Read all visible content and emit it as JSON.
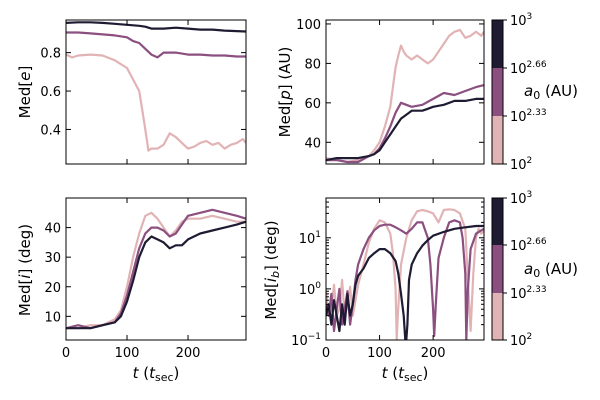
{
  "colors": {
    "high": "#1e1b33",
    "mid": "#8b4f80",
    "low": "#e2b3b5"
  },
  "colorbar": {
    "label_main": "a",
    "label_sub": "0",
    "label_unit": " (AU)",
    "ticks": [
      {
        "base": "10",
        "exp": "3"
      },
      {
        "base": "10",
        "exp": "2.66"
      },
      {
        "base": "10",
        "exp": "2.33"
      },
      {
        "base": "10",
        "exp": "2"
      }
    ]
  },
  "xaxis": {
    "label_t": "t",
    "label_open": " (",
    "label_t2": "t",
    "label_sub": "sec",
    "label_close": ")",
    "ticks": [
      "0",
      "100",
      "200"
    ]
  },
  "chart_data": [
    {
      "type": "line",
      "id": "e",
      "ylabel": {
        "pre": "Med[",
        "var": "e",
        "post": "]"
      },
      "xlim": [
        0,
        295
      ],
      "ylim": [
        0.22,
        0.97
      ],
      "yticks": [
        "0.4",
        "0.6",
        "0.8"
      ],
      "ytick_values": [
        0.4,
        0.6,
        0.8
      ],
      "series": [
        {
          "name": "a0 = 10^3",
          "color_key": "high",
          "x": [
            0,
            20,
            40,
            60,
            80,
            100,
            120,
            130,
            140,
            160,
            180,
            200,
            220,
            240,
            260,
            280,
            295
          ],
          "y": [
            0.955,
            0.958,
            0.958,
            0.955,
            0.95,
            0.945,
            0.94,
            0.935,
            0.925,
            0.925,
            0.93,
            0.925,
            0.92,
            0.92,
            0.915,
            0.912,
            0.91
          ]
        },
        {
          "name": "a0 = 10^2.66",
          "color_key": "mid",
          "x": [
            0,
            20,
            40,
            60,
            80,
            100,
            110,
            120,
            130,
            140,
            150,
            160,
            180,
            200,
            220,
            240,
            260,
            280,
            295
          ],
          "y": [
            0.905,
            0.905,
            0.9,
            0.895,
            0.89,
            0.88,
            0.86,
            0.85,
            0.82,
            0.79,
            0.775,
            0.8,
            0.8,
            0.79,
            0.79,
            0.785,
            0.785,
            0.78,
            0.78
          ]
        },
        {
          "name": "a0 = 10^2.33",
          "color_key": "low",
          "x": [
            0,
            10,
            20,
            40,
            60,
            80,
            90,
            100,
            110,
            120,
            125,
            130,
            135,
            140,
            150,
            160,
            170,
            180,
            190,
            200,
            210,
            220,
            230,
            240,
            250,
            260,
            270,
            280,
            290,
            295
          ],
          "y": [
            0.79,
            0.775,
            0.785,
            0.79,
            0.785,
            0.76,
            0.74,
            0.72,
            0.66,
            0.6,
            0.5,
            0.4,
            0.29,
            0.3,
            0.3,
            0.32,
            0.38,
            0.36,
            0.33,
            0.3,
            0.31,
            0.33,
            0.34,
            0.32,
            0.33,
            0.3,
            0.32,
            0.33,
            0.35,
            0.33
          ]
        }
      ]
    },
    {
      "type": "line",
      "id": "p",
      "ylabel": {
        "pre": "Med[",
        "var": "p",
        "post": "] (AU)"
      },
      "xlim": [
        0,
        295
      ],
      "ylim": [
        29,
        102
      ],
      "yticks": [
        "40",
        "60",
        "80",
        "100"
      ],
      "ytick_values": [
        40,
        60,
        80,
        100
      ],
      "series": [
        {
          "name": "a0 = 10^3",
          "color_key": "high",
          "x": [
            0,
            20,
            40,
            60,
            80,
            90,
            100,
            110,
            120,
            130,
            140,
            150,
            160,
            170,
            180,
            190,
            200,
            220,
            240,
            260,
            280,
            295
          ],
          "y": [
            31,
            32,
            32,
            32,
            33,
            34,
            36,
            40,
            44,
            48,
            52,
            54,
            56,
            56,
            56,
            57,
            58,
            59,
            61,
            61,
            62,
            62
          ]
        },
        {
          "name": "a0 = 10^2.66",
          "color_key": "mid",
          "x": [
            0,
            20,
            40,
            60,
            80,
            90,
            100,
            110,
            120,
            130,
            140,
            150,
            160,
            180,
            200,
            220,
            240,
            260,
            280,
            295
          ],
          "y": [
            31,
            31,
            30,
            30,
            33,
            34,
            37,
            42,
            48,
            55,
            60,
            59,
            58,
            59,
            62,
            65,
            64,
            66,
            68,
            69
          ]
        },
        {
          "name": "a0 = 10^2.33",
          "color_key": "low",
          "x": [
            0,
            20,
            40,
            60,
            80,
            90,
            100,
            110,
            120,
            125,
            130,
            135,
            140,
            145,
            150,
            160,
            170,
            180,
            190,
            200,
            210,
            220,
            230,
            240,
            250,
            260,
            270,
            280,
            290,
            295
          ],
          "y": [
            32,
            31,
            30,
            31,
            33,
            36,
            40,
            48,
            58,
            68,
            78,
            84,
            89,
            86,
            84,
            82,
            84,
            82,
            80,
            82,
            86,
            90,
            94,
            96,
            97,
            93,
            94,
            96,
            94,
            96
          ]
        }
      ]
    },
    {
      "type": "line",
      "id": "i",
      "ylabel": {
        "pre": "Med[",
        "var": "i",
        "post": "] (deg)"
      },
      "xlim": [
        0,
        295
      ],
      "ylim": [
        2,
        50
      ],
      "yticks": [
        "10",
        "20",
        "30",
        "40"
      ],
      "ytick_values": [
        10,
        20,
        30,
        40
      ],
      "series": [
        {
          "name": "a0 = 10^3",
          "color_key": "high",
          "x": [
            0,
            20,
            40,
            60,
            80,
            90,
            100,
            110,
            120,
            130,
            140,
            150,
            160,
            170,
            180,
            190,
            200,
            220,
            240,
            260,
            280,
            295
          ],
          "y": [
            6,
            6,
            6,
            7,
            8,
            10,
            15,
            22,
            30,
            35,
            37,
            36,
            35,
            33,
            34,
            34,
            36,
            38,
            39,
            40,
            41,
            42
          ]
        },
        {
          "name": "a0 = 10^2.66",
          "color_key": "mid",
          "x": [
            0,
            20,
            40,
            60,
            80,
            90,
            100,
            110,
            120,
            130,
            140,
            150,
            160,
            170,
            180,
            190,
            200,
            220,
            240,
            260,
            280,
            295
          ],
          "y": [
            6,
            7,
            6,
            7,
            8,
            11,
            17,
            25,
            33,
            38,
            40,
            40,
            39,
            37,
            38,
            41,
            44,
            45,
            46,
            45,
            44,
            43
          ]
        },
        {
          "name": "a0 = 10^2.33",
          "color_key": "low",
          "x": [
            0,
            20,
            40,
            60,
            80,
            90,
            100,
            110,
            120,
            130,
            140,
            150,
            160,
            170,
            180,
            190,
            200,
            220,
            240,
            260,
            280,
            295
          ],
          "y": [
            6,
            6,
            7,
            7,
            9,
            12,
            20,
            30,
            38,
            44,
            45,
            43,
            40,
            37,
            39,
            42,
            43,
            43,
            44,
            43,
            42,
            42
          ]
        }
      ]
    },
    {
      "type": "line",
      "id": "ib",
      "yscale": "log",
      "ylabel": {
        "pre": "Med[",
        "var": "i",
        "var_sub": "b",
        "post": "] (deg)"
      },
      "xlim": [
        0,
        295
      ],
      "ylim": [
        0.1,
        60
      ],
      "yticks": [
        {
          "base": "10",
          "exp": "−1"
        },
        {
          "base": "10",
          "exp": "0"
        },
        {
          "base": "10",
          "exp": "1"
        }
      ],
      "ytick_values": [
        0.1,
        1,
        10
      ],
      "series": [
        {
          "name": "a0 = 10^2.33",
          "color_key": "low",
          "x": [
            0,
            5,
            10,
            15,
            20,
            25,
            30,
            35,
            40,
            45,
            50,
            55,
            60,
            70,
            80,
            90,
            100,
            110,
            120,
            125,
            130,
            132,
            134,
            140,
            150,
            160,
            170,
            180,
            190,
            200,
            210,
            220,
            230,
            240,
            250,
            260,
            265,
            270,
            275,
            280,
            285,
            290,
            295
          ],
          "y": [
            0.9,
            0.3,
            0.4,
            1.2,
            0.3,
            0.4,
            1.5,
            0.3,
            0.5,
            1.1,
            0.3,
            0.6,
            1.2,
            3,
            8,
            15,
            22,
            20,
            12,
            5,
            1.0,
            0.1,
            0.3,
            3,
            10,
            22,
            33,
            35,
            33,
            30,
            20,
            35,
            36,
            35,
            30,
            15,
            1.5,
            0.15,
            2,
            10,
            15,
            12,
            14
          ]
        },
        {
          "name": "a0 = 10^2.66",
          "color_key": "mid",
          "x": [
            0,
            5,
            10,
            15,
            20,
            25,
            30,
            35,
            40,
            45,
            50,
            55,
            60,
            70,
            80,
            90,
            100,
            110,
            120,
            130,
            140,
            150,
            160,
            170,
            180,
            190,
            195,
            200,
            202,
            205,
            210,
            220,
            230,
            240,
            250,
            255,
            260,
            262,
            265,
            270,
            280,
            290,
            295
          ],
          "y": [
            0.5,
            0.3,
            0.8,
            0.15,
            0.4,
            1.0,
            0.2,
            0.4,
            0.9,
            0.2,
            0.5,
            1.5,
            3,
            6,
            10,
            14,
            17,
            18,
            18,
            16,
            14,
            12,
            15,
            20,
            20,
            10,
            3,
            0.4,
            0.12,
            0.5,
            4,
            10,
            20,
            22,
            20,
            10,
            2,
            0.1,
            1,
            6,
            12,
            14,
            15
          ]
        },
        {
          "name": "a0 = 10^3",
          "color_key": "high",
          "x": [
            0,
            5,
            10,
            15,
            20,
            25,
            30,
            35,
            40,
            45,
            50,
            55,
            60,
            70,
            80,
            90,
            100,
            110,
            120,
            130,
            135,
            140,
            145,
            148,
            150,
            152,
            155,
            160,
            170,
            180,
            190,
            200,
            220,
            240,
            260,
            280,
            295
          ],
          "y": [
            0.3,
            0.5,
            0.2,
            0.6,
            0.3,
            0.15,
            0.5,
            0.2,
            0.8,
            0.3,
            0.5,
            1.2,
            1.8,
            2.5,
            4,
            5,
            6,
            6,
            5,
            3.5,
            2,
            0.8,
            0.3,
            0.1,
            0.1,
            0.2,
            1.5,
            3,
            5,
            7,
            9,
            11,
            13,
            15,
            16,
            17,
            17
          ]
        }
      ]
    }
  ]
}
